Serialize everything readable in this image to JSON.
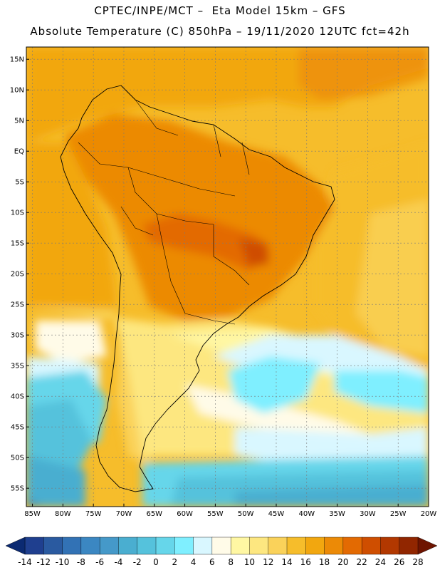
{
  "header": {
    "line1": "CPTEC/INPE/MCT –  Eta Model 15km – GFS",
    "line2": "Absolute Temperature (C) 850hPa – 19/11/2020 12UTC fct=42h"
  },
  "axes": {
    "lat_labels": [
      "15N",
      "10N",
      "5N",
      "EQ",
      "5S",
      "10S",
      "15S",
      "20S",
      "25S",
      "30S",
      "35S",
      "40S",
      "45S",
      "50S",
      "55S"
    ],
    "lon_labels": [
      "85W",
      "80W",
      "75W",
      "70W",
      "65W",
      "60W",
      "55W",
      "50W",
      "45W",
      "40W",
      "35W",
      "30W",
      "25W",
      "20W"
    ]
  },
  "colorbar": {
    "levels": [
      -14,
      -12,
      -10,
      -8,
      -6,
      -4,
      -2,
      0,
      2,
      4,
      6,
      8,
      10,
      12,
      14,
      16,
      18,
      20,
      22,
      24,
      26,
      28
    ],
    "labels": [
      "-14",
      "-12",
      "-10",
      "-8",
      "-6",
      "-4",
      "-2",
      "0",
      "2",
      "4",
      "6",
      "8",
      "10",
      "12",
      "14",
      "16",
      "18",
      "20",
      "22",
      "24",
      "26",
      "28"
    ],
    "colors": [
      "#1f3f8f",
      "#2a5aa0",
      "#3272b5",
      "#3b87c2",
      "#4599c9",
      "#4aaed0",
      "#55c2dc",
      "#66d6ea",
      "#7fefff",
      "#d9f7ff",
      "#fffbe8",
      "#fff7a3",
      "#fde780",
      "#fad25a",
      "#f6bd2b",
      "#f2a70f",
      "#ec8a06",
      "#e36a02",
      "#cf4e00",
      "#b23800",
      "#912600"
    ],
    "under_color": "#0b2a72",
    "over_color": "#6e1400"
  },
  "legend_colors": {
    "land_border": "#000000",
    "grid": "#7a7a7a"
  }
}
